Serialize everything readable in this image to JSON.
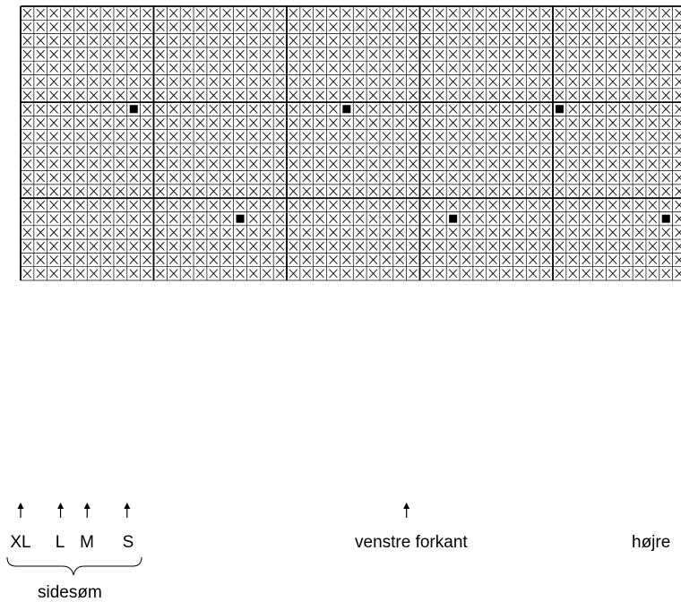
{
  "grid": {
    "cols": 50,
    "rows": 20,
    "major_every_col": 10,
    "major_every_row": 7,
    "blank_cells": [
      {
        "row": 7,
        "col": 8
      },
      {
        "row": 7,
        "col": 24
      },
      {
        "row": 7,
        "col": 40
      },
      {
        "row": 15,
        "col": 16
      },
      {
        "row": 15,
        "col": 32
      },
      {
        "row": 15,
        "col": 48
      }
    ],
    "filled_markers": [
      {
        "row": 7,
        "col": 8
      },
      {
        "row": 7,
        "col": 24
      },
      {
        "row": 7,
        "col": 40
      },
      {
        "row": 15,
        "col": 16
      },
      {
        "row": 15,
        "col": 32
      },
      {
        "row": 15,
        "col": 48
      }
    ],
    "stitch_symbol": "x-cross",
    "marker_symbol": "filled-square"
  },
  "labels": {
    "xl": "XL",
    "l": "L",
    "m": "M",
    "s": "S",
    "venstre_forkant": "venstre forkant",
    "hojre": "højre",
    "sidesom": "sidesøm"
  },
  "arrows": [
    {
      "name": "arrow-xl",
      "col_line": 0
    },
    {
      "name": "arrow-l",
      "col_line": 3
    },
    {
      "name": "arrow-m",
      "col_line": 5
    },
    {
      "name": "arrow-s",
      "col_line": 8
    },
    {
      "name": "arrow-venstre-forkant",
      "col_line": 29
    }
  ],
  "colors": {
    "line": "#000000",
    "background": "#ffffff"
  }
}
